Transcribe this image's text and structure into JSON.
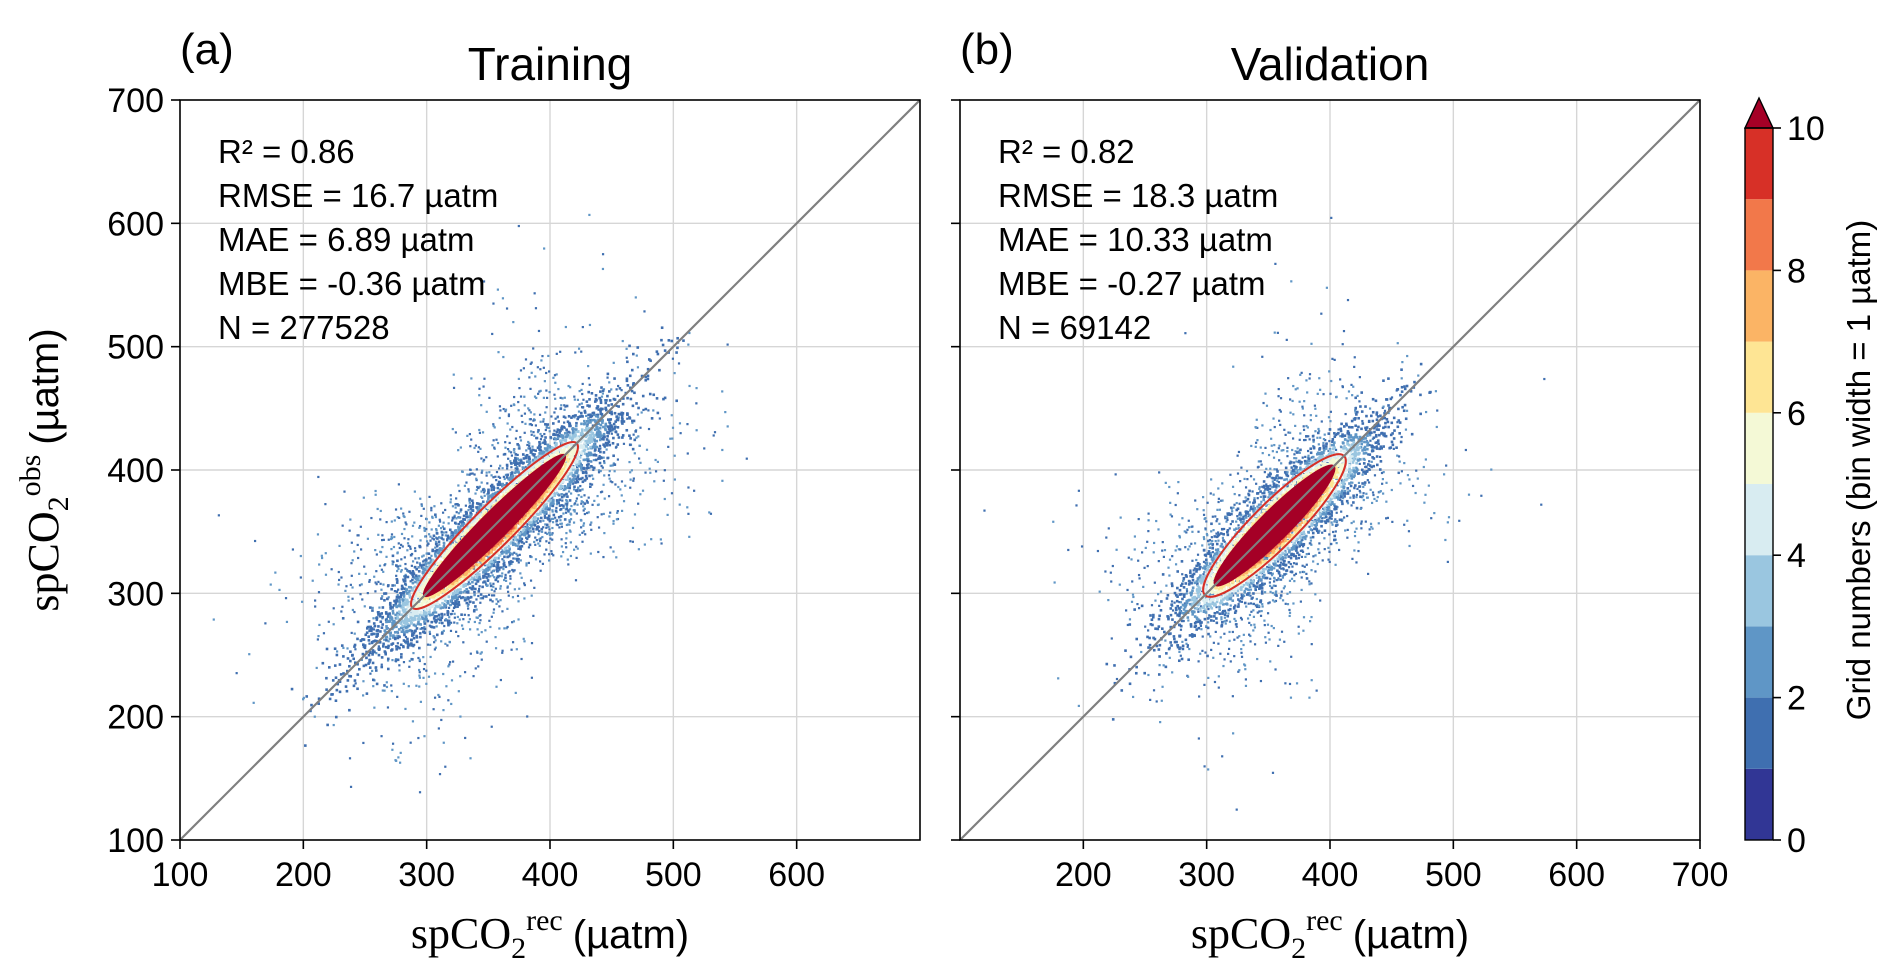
{
  "figure": {
    "ylabel_main": "spCO",
    "ylabel_sub": "2",
    "ylabel_sup": "obs",
    "ylabel_unit": "(µatm)",
    "xlabel_main": "spCO",
    "xlabel_sub": "2",
    "xlabel_sup": "rec",
    "xlabel_unit": "(µatm)"
  },
  "colorbar": {
    "label": "Grid numbers (bin width = 1 µatm)",
    "ticks": [
      "0",
      "2",
      "4",
      "6",
      "8",
      "10"
    ],
    "tick_values": [
      0,
      2,
      4,
      6,
      8,
      10
    ],
    "levels": [
      0,
      1,
      2,
      3,
      4,
      5,
      6,
      7,
      8,
      9,
      10
    ],
    "colors": [
      "#313695",
      "#3f6fb0",
      "#5f96c6",
      "#9ac6e0",
      "#d8ecf1",
      "#f4f9d6",
      "#fee594",
      "#fbb465",
      "#f2784a",
      "#d73027",
      "#a50026"
    ],
    "extend": "max"
  },
  "chart_data": [
    {
      "type": "scatter",
      "panel_label": "(a)",
      "title": "Training",
      "xlabel": "spCO2rec (µatm)",
      "ylabel": "spCO2obs (µatm)",
      "xlim": [
        100,
        700
      ],
      "ylim": [
        100,
        700
      ],
      "xticks": [
        100,
        200,
        300,
        400,
        500,
        600
      ],
      "xtick_labels": [
        "100",
        "200",
        "300",
        "400",
        "500",
        "600"
      ],
      "yticks": [
        100,
        200,
        300,
        400,
        500,
        600,
        700
      ],
      "ytick_labels": [
        "100",
        "200",
        "300",
        "400",
        "500",
        "600",
        "700"
      ],
      "grid": true,
      "one_to_one_line": true,
      "density": {
        "center_x": 355,
        "center_y": 355,
        "along_sd": 65,
        "across_sd": 11
      },
      "stats": [
        "R² = 0.86",
        "RMSE = 16.7 µatm",
        "MAE = 6.89 µatm",
        "MBE = -0.36 µatm",
        "N = 277528"
      ]
    },
    {
      "type": "scatter",
      "panel_label": "(b)",
      "title": "Validation",
      "xlabel": "spCO2rec (µatm)",
      "ylabel": "",
      "xlim": [
        100,
        700
      ],
      "ylim": [
        100,
        700
      ],
      "xticks": [
        200,
        300,
        400,
        500,
        600,
        700
      ],
      "xtick_labels": [
        "200",
        "300",
        "400",
        "500",
        "600",
        "700"
      ],
      "yticks": [
        100,
        200,
        300,
        400,
        500,
        600,
        700
      ],
      "ytick_labels": [],
      "grid": true,
      "one_to_one_line": true,
      "density": {
        "center_x": 355,
        "center_y": 355,
        "along_sd": 55,
        "across_sd": 12
      },
      "stats": [
        "R² = 0.82",
        "RMSE = 18.3 µatm",
        "MAE = 10.33 µatm",
        "MBE = -0.27 µatm",
        "N = 69142"
      ]
    }
  ]
}
